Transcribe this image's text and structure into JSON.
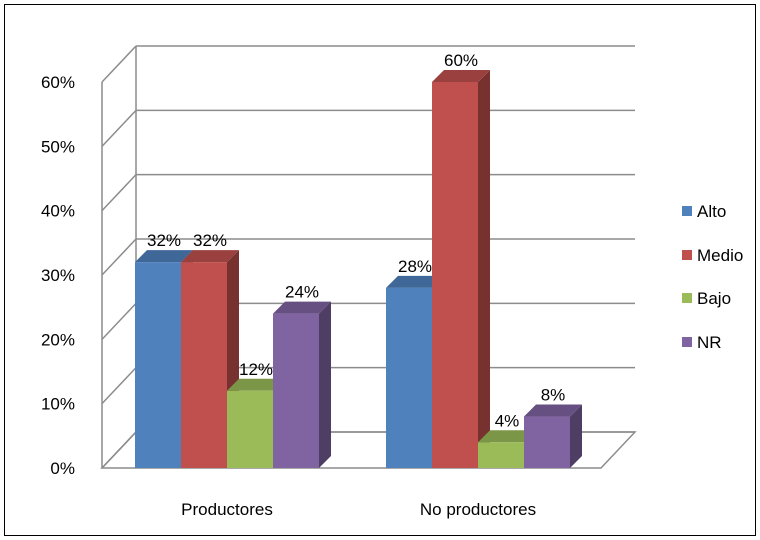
{
  "chart_data": {
    "type": "bar",
    "style": "3d-clustered-column",
    "categories": [
      "Productores",
      "No productores"
    ],
    "series": [
      {
        "name": "Alto",
        "color": "#4F81BD",
        "values": [
          32,
          28
        ]
      },
      {
        "name": "Medio",
        "color": "#C0504D",
        "values": [
          32,
          60
        ]
      },
      {
        "name": "Bajo",
        "color": "#9BBB59",
        "values": [
          12,
          4
        ]
      },
      {
        "name": "NR",
        "color": "#8064A2",
        "values": [
          24,
          8
        ]
      }
    ],
    "data_labels": [
      [
        "32%",
        "28%"
      ],
      [
        "32%",
        "60%"
      ],
      [
        "12%",
        "4%"
      ],
      [
        "24%",
        "8%"
      ]
    ],
    "yticks": [
      0,
      10,
      20,
      30,
      40,
      50,
      60
    ],
    "ytick_labels": [
      "0%",
      "10%",
      "20%",
      "30%",
      "40%",
      "50%",
      "60%"
    ],
    "ylim": [
      0,
      60
    ],
    "title": "",
    "xlabel": "",
    "ylabel": "",
    "grid": true,
    "legend_position": "right"
  }
}
